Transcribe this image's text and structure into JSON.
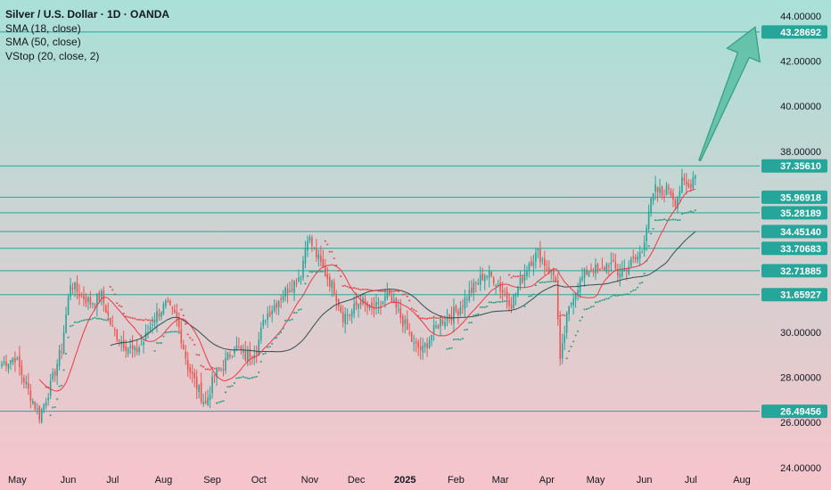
{
  "legend": {
    "title": "Silver / U.S. Dollar · 1D · OANDA",
    "sma18": "SMA (18, close)",
    "sma50": "SMA (50, close)",
    "vstop": "VStop (20, close, 2)"
  },
  "colors": {
    "bg_top": "#a9e0d8",
    "bg_bottom": "#f7c4cb",
    "up": "#26a69a",
    "down": "#ef5350",
    "sma18": "#f23645",
    "sma50": "#2f4f4f",
    "vstop_up": "#2e9e84",
    "vstop_down": "#e64a4a",
    "level": "#26a69a",
    "arrow_fill": "#5ec0a4",
    "arrow_stroke": "#2e9e84",
    "axis_text": "#131722"
  },
  "chart_data": {
    "type": "candlestick",
    "ylim": [
      23.8,
      44.7
    ],
    "y_ticks": [
      "44.00000",
      "42.00000",
      "40.00000",
      "38.00000",
      "30.00000",
      "28.00000",
      "26.00000",
      "24.00000"
    ],
    "y_tick_values": [
      44,
      42,
      40,
      38,
      30,
      28,
      26,
      24
    ],
    "x_ticks": [
      "May",
      "Jun",
      "Jul",
      "Aug",
      "Sep",
      "Oct",
      "Nov",
      "Dec",
      "2025",
      "Feb",
      "Mar",
      "Apr",
      "May",
      "Jun",
      "Jul",
      "Aug"
    ],
    "x_tick_bold": [
      false,
      false,
      false,
      false,
      false,
      false,
      false,
      false,
      true,
      false,
      false,
      false,
      false,
      false,
      false,
      false
    ],
    "levels": [
      {
        "label": "43.28692",
        "value": 43.28692
      },
      {
        "label": "37.35610",
        "value": 37.3561
      },
      {
        "label": "35.96918",
        "value": 35.96918
      },
      {
        "label": "35.28189",
        "value": 35.28189
      },
      {
        "label": "34.45140",
        "value": 34.4514
      },
      {
        "label": "33.70683",
        "value": 33.70683
      },
      {
        "label": "32.71885",
        "value": 32.71885
      },
      {
        "label": "31.65927",
        "value": 31.65927
      },
      {
        "label": "26.49456",
        "value": 26.49456
      }
    ],
    "anchors": [
      [
        0,
        28.6
      ],
      [
        6,
        28.9
      ],
      [
        12,
        27.4
      ],
      [
        17,
        26.3
      ],
      [
        22,
        27.6
      ],
      [
        27,
        29.3
      ],
      [
        31,
        32.2
      ],
      [
        35,
        31.7
      ],
      [
        40,
        31.3
      ],
      [
        45,
        31.6
      ],
      [
        50,
        30.1
      ],
      [
        55,
        29.5
      ],
      [
        60,
        29.1
      ],
      [
        64,
        29.6
      ],
      [
        69,
        30.7
      ],
      [
        74,
        31.2
      ],
      [
        79,
        30.6
      ],
      [
        84,
        28.5
      ],
      [
        88,
        27.6
      ],
      [
        92,
        26.8
      ],
      [
        96,
        28.1
      ],
      [
        100,
        28.5
      ],
      [
        105,
        29.4
      ],
      [
        110,
        28.9
      ],
      [
        115,
        29.3
      ],
      [
        119,
        30.7
      ],
      [
        123,
        31.2
      ],
      [
        127,
        31.7
      ],
      [
        131,
        32.1
      ],
      [
        135,
        32.6
      ],
      [
        138,
        34.3
      ],
      [
        142,
        33.4
      ],
      [
        146,
        32.6
      ],
      [
        150,
        31.9
      ],
      [
        154,
        30.7
      ],
      [
        158,
        30.9
      ],
      [
        162,
        31.4
      ],
      [
        166,
        31.0
      ],
      [
        170,
        31.1
      ],
      [
        174,
        31.6
      ],
      [
        178,
        31.0
      ],
      [
        182,
        30.3
      ],
      [
        186,
        29.4
      ],
      [
        190,
        29.2
      ],
      [
        194,
        29.9
      ],
      [
        198,
        30.5
      ],
      [
        202,
        30.7
      ],
      [
        206,
        31.0
      ],
      [
        210,
        31.6
      ],
      [
        214,
        32.1
      ],
      [
        218,
        32.6
      ],
      [
        222,
        32.4
      ],
      [
        226,
        31.8
      ],
      [
        230,
        31.3
      ],
      [
        234,
        32.2
      ],
      [
        238,
        33.1
      ],
      [
        242,
        33.5
      ],
      [
        246,
        32.9
      ],
      [
        250,
        32.4
      ],
      [
        252,
        28.6
      ],
      [
        255,
        30.6
      ],
      [
        258,
        31.7
      ],
      [
        262,
        32.4
      ],
      [
        266,
        32.9
      ],
      [
        270,
        32.6
      ],
      [
        274,
        33.1
      ],
      [
        278,
        32.6
      ],
      [
        282,
        32.9
      ],
      [
        286,
        33.2
      ],
      [
        289,
        33.6
      ],
      [
        292,
        35.4
      ],
      [
        295,
        36.3
      ],
      [
        298,
        36.1
      ],
      [
        301,
        36.4
      ],
      [
        304,
        35.8
      ],
      [
        307,
        36.6
      ],
      [
        310,
        36.4
      ],
      [
        313,
        37.1
      ]
    ],
    "start_date": "2024-04-22",
    "end_date": "2025-07-14",
    "vstop_start": 285,
    "arrow": {
      "from": [
        315,
        37.6
      ],
      "to": [
        340,
        43.5
      ]
    }
  }
}
